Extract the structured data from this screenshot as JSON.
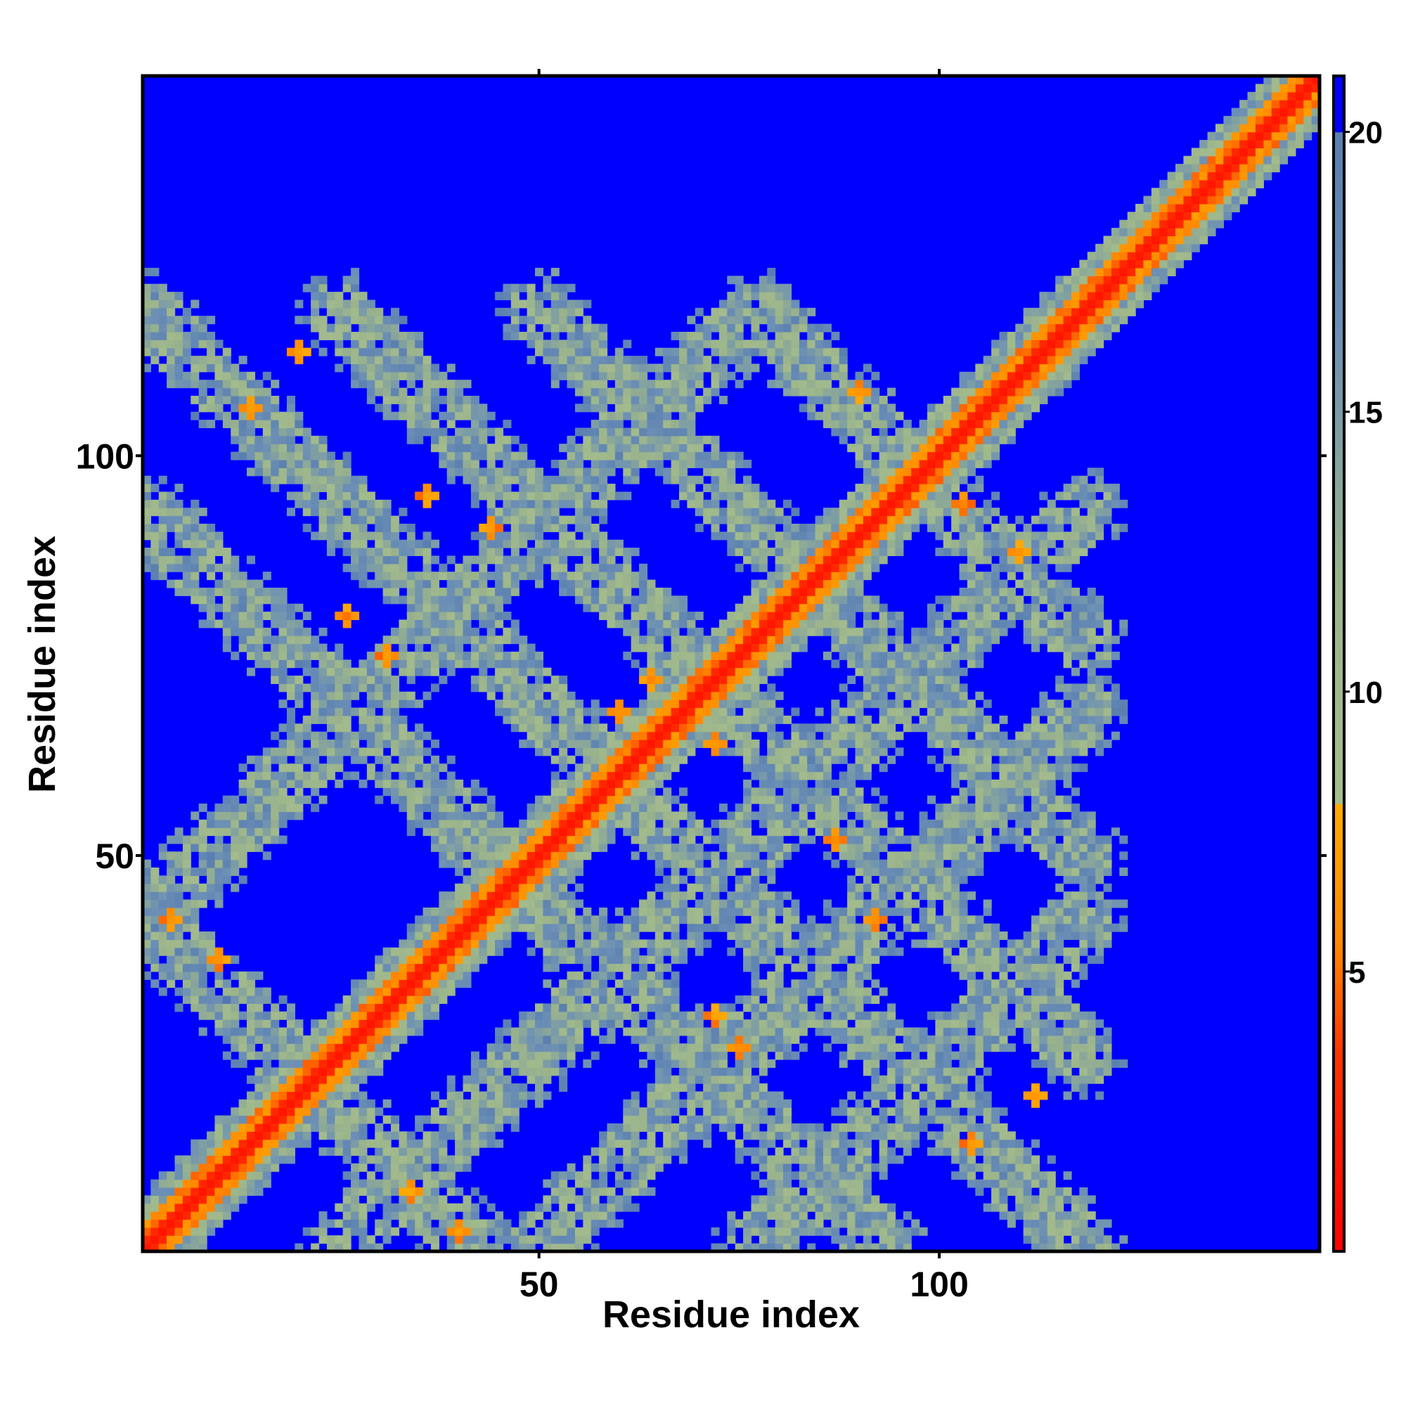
{
  "chart_data": {
    "type": "heatmap",
    "title": "",
    "xlabel": "Residue index",
    "ylabel": "Residue index",
    "n_residues": 147,
    "xlim": [
      1,
      147
    ],
    "ylim": [
      1,
      147
    ],
    "x_ticks": [
      {
        "value": 50,
        "label": "50"
      },
      {
        "value": 100,
        "label": "100"
      }
    ],
    "y_ticks": [
      {
        "value": 50,
        "label": "50"
      },
      {
        "value": 100,
        "label": "100"
      }
    ],
    "grid": false,
    "colorbar": {
      "range": [
        0,
        21
      ],
      "ticks": [
        {
          "value": 5,
          "label": "5"
        },
        {
          "value": 10,
          "label": "10"
        },
        {
          "value": 15,
          "label": "15"
        },
        {
          "value": 20,
          "label": "20"
        }
      ],
      "stops": [
        {
          "value": 0,
          "color": "#ff0000"
        },
        {
          "value": 3.5,
          "color": "#ff3300"
        },
        {
          "value": 5.5,
          "color": "#ff8800"
        },
        {
          "value": 8.0,
          "color": "#ffaa00"
        },
        {
          "value": 8.01,
          "color": "#a6be8c"
        },
        {
          "value": 12.0,
          "color": "#9ab38c"
        },
        {
          "value": 16.5,
          "color": "#6b8fb5"
        },
        {
          "value": 20.0,
          "color": "#5a7fb0"
        },
        {
          "value": 20.01,
          "color": "#0000ff"
        },
        {
          "value": 21,
          "color": "#0000ff"
        }
      ]
    },
    "value_description": "Residue-residue distance map",
    "diagonal_band_width": 1.5,
    "secondary_contact_bands": [
      {
        "from": [
          42,
          1
        ],
        "to": [
          1,
          42
        ]
      },
      {
        "from": [
          93,
          1
        ],
        "to": [
          1,
          93
        ]
      },
      {
        "from": [
          118,
          1
        ],
        "to": [
          1,
          118
        ]
      },
      {
        "from": [
          118,
          25
        ],
        "to": [
          25,
          118
        ]
      },
      {
        "from": [
          118,
          50
        ],
        "to": [
          50,
          118
        ]
      },
      {
        "from": [
          118,
          77
        ],
        "to": [
          77,
          118
        ]
      },
      {
        "from": [
          1,
          42
        ],
        "to": [
          77,
          118
        ]
      },
      {
        "from": [
          1,
          1
        ],
        "to": [
          118,
          118
        ]
      },
      {
        "from": [
          25,
          1
        ],
        "to": [
          118,
          93
        ]
      },
      {
        "from": [
          50,
          1
        ],
        "to": [
          118,
          68
        ]
      },
      {
        "from": [
          77,
          1
        ],
        "to": [
          118,
          42
        ]
      }
    ],
    "strong_contacts": [
      {
        "i": 34,
        "j": 8
      },
      {
        "i": 40,
        "j": 3
      },
      {
        "i": 75,
        "j": 26
      },
      {
        "i": 72,
        "j": 30
      },
      {
        "i": 112,
        "j": 20
      },
      {
        "i": 104,
        "j": 14
      },
      {
        "i": 92,
        "j": 42
      },
      {
        "i": 87,
        "j": 52
      },
      {
        "i": 10,
        "j": 37
      },
      {
        "i": 4,
        "j": 42
      },
      {
        "i": 36,
        "j": 95
      },
      {
        "i": 44,
        "j": 91
      },
      {
        "i": 20,
        "j": 113
      },
      {
        "i": 14,
        "j": 106
      },
      {
        "i": 26,
        "j": 80
      },
      {
        "i": 31,
        "j": 75
      },
      {
        "i": 90,
        "j": 108
      },
      {
        "i": 96,
        "j": 100
      },
      {
        "i": 103,
        "j": 94
      },
      {
        "i": 110,
        "j": 88
      },
      {
        "i": 68,
        "j": 70
      },
      {
        "i": 72,
        "j": 64
      },
      {
        "i": 64,
        "j": 72
      },
      {
        "i": 60,
        "j": 68
      },
      {
        "i": 131,
        "j": 136
      },
      {
        "i": 136,
        "j": 131
      }
    ]
  }
}
